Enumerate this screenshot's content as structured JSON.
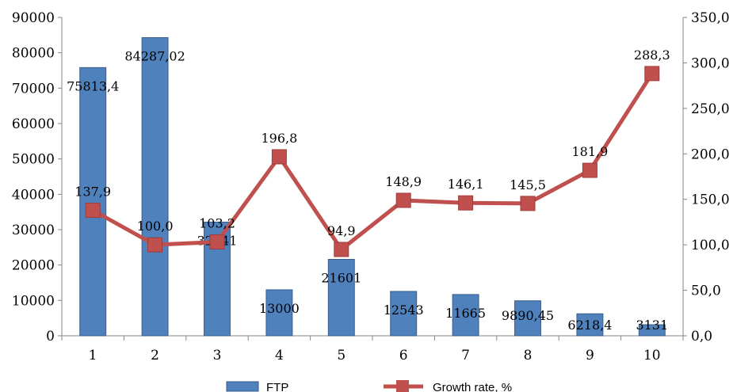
{
  "chart_data": {
    "type": "bar",
    "categories": [
      "1",
      "2",
      "3",
      "4",
      "5",
      "6",
      "7",
      "8",
      "9",
      "10"
    ],
    "series": [
      {
        "name": "FTP",
        "type": "bar",
        "axis": "left",
        "values": [
          75813.4,
          84287.02,
          32141,
          13000,
          21601,
          12543,
          11665,
          9890.45,
          6218.4,
          3131
        ],
        "labels": [
          "75813,4",
          "84287,02",
          "32141",
          "13000",
          "21601",
          "12543",
          "11665",
          "9890,45",
          "6218,4",
          "3131"
        ]
      },
      {
        "name": "Growth rate, %",
        "type": "line",
        "axis": "right",
        "values": [
          137.9,
          100.0,
          103.2,
          196.8,
          94.9,
          148.9,
          146.1,
          145.5,
          181.9,
          288.3
        ],
        "labels": [
          "137,9",
          "100,0",
          "103,2",
          "196,8",
          "94,9",
          "148,9",
          "146,1",
          "145,5",
          "181,9",
          "288,3"
        ]
      }
    ],
    "y_left": {
      "min": 0,
      "max": 90000,
      "ticks": [
        "0",
        "10000",
        "20000",
        "30000",
        "40000",
        "50000",
        "60000",
        "70000",
        "80000",
        "90000"
      ]
    },
    "y_right": {
      "min": 0,
      "max": 350,
      "ticks": [
        "0,0",
        "50,0",
        "100,0",
        "150,0",
        "200,0",
        "250,0",
        "300,0",
        "350,0"
      ]
    },
    "title": "",
    "xlabel": "",
    "ylabel": "",
    "grid": false,
    "legend_position": "bottom",
    "colors": {
      "bar": "#4f81bd",
      "bar_edge": "#385d8a",
      "line": "#c0504d",
      "marker": "#c0504d"
    }
  }
}
